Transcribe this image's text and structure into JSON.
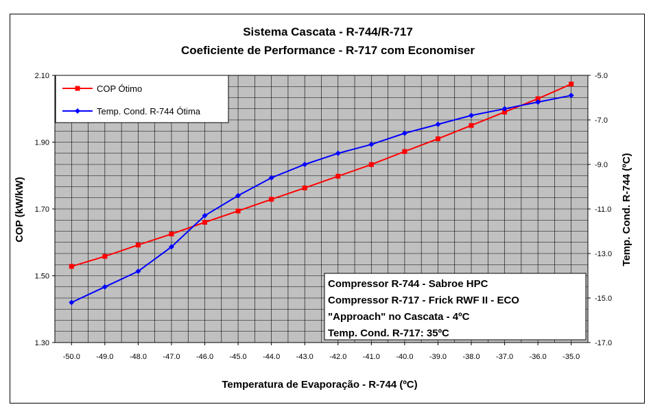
{
  "chart_data": {
    "type": "line",
    "title": "Sistema Cascata - R-744/R-717",
    "subtitle": "Coeficiente de Performance - R-717 com Economiser",
    "xlabel": "Temperatura de Evaporação - R-744 (ºC)",
    "ylabel": "COP (kW/kW)",
    "y2label": "Temp. Cond. R-744 (ºC)",
    "x": [
      -50,
      -49,
      -48,
      -47,
      -46,
      -45,
      -44,
      -43,
      -42,
      -41,
      -40,
      -39,
      -38,
      -37,
      -36,
      -35
    ],
    "xlim": [
      -50.5,
      -34.5
    ],
    "ylim": [
      1.3,
      2.1
    ],
    "y2lim": [
      -17.0,
      -5.0
    ],
    "x_ticks": [
      "-50.0",
      "-49.0",
      "-48.0",
      "-47.0",
      "-46.0",
      "-45.0",
      "-44.0",
      "-43.0",
      "-42.0",
      "-41.0",
      "-40.0",
      "-39.0",
      "-38.0",
      "-37.0",
      "-36.0",
      "-35.0"
    ],
    "y_ticks": [
      "1.30",
      "1.50",
      "1.70",
      "1.90",
      "2.10"
    ],
    "y2_ticks": [
      "-17.0",
      "-15.0",
      "-13.0",
      "-11.0",
      "-9.0",
      "-7.0",
      "-5.0"
    ],
    "grid": true,
    "legend_position": "top-left",
    "series": [
      {
        "name": "COP Ótimo",
        "axis": "left",
        "color": "#ff0000",
        "marker": "square",
        "values": [
          1.528,
          1.558,
          1.592,
          1.625,
          1.66,
          1.694,
          1.729,
          1.763,
          1.798,
          1.833,
          1.872,
          1.91,
          1.95,
          1.99,
          2.03,
          2.074
        ]
      },
      {
        "name": "Temp. Cond. R-744 Ótima",
        "axis": "right",
        "color": "#0000ff",
        "marker": "diamond",
        "values": [
          -15.2,
          -14.5,
          -13.8,
          -12.7,
          -11.3,
          -10.4,
          -9.6,
          -9.0,
          -8.5,
          -8.1,
          -7.6,
          -7.2,
          -6.8,
          -6.5,
          -6.2,
          -5.9
        ]
      }
    ],
    "annotation": [
      "Compressor R-744 - Sabroe HPC",
      "Compressor R-717 - Frick RWF II - ECO",
      "\"Approach\" no Cascata - 4ºC",
      "Temp. Cond. R-717: 35ºC"
    ],
    "plot_background": "#c0c0c0"
  }
}
